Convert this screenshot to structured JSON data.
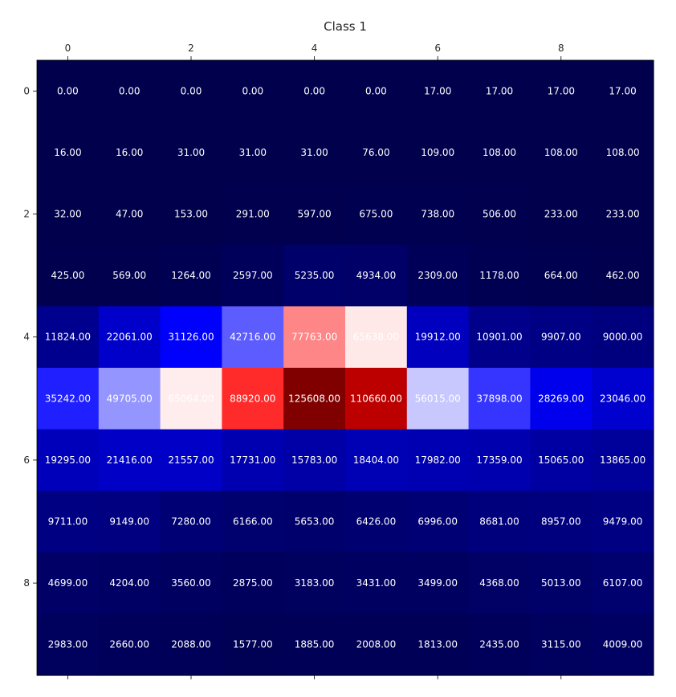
{
  "chart_data": {
    "type": "heatmap",
    "title": "Class 1",
    "colormap": "seismic",
    "rows": 10,
    "cols": 10,
    "vmin": 0,
    "vmax": 125608,
    "x_ticks": [
      0,
      2,
      4,
      6,
      8
    ],
    "y_ticks": [
      0,
      2,
      4,
      6,
      8
    ],
    "x_ticks_position": "top",
    "values": [
      [
        0,
        0,
        0,
        0,
        0,
        0,
        17,
        17,
        17,
        17
      ],
      [
        16,
        16,
        31,
        31,
        31,
        76,
        109,
        108,
        108,
        108
      ],
      [
        32,
        47,
        153,
        291,
        597,
        675,
        738,
        506,
        233,
        233
      ],
      [
        425,
        569,
        1264,
        2597,
        5235,
        4934,
        2309,
        1178,
        664,
        462
      ],
      [
        11824,
        22061,
        31126,
        42716,
        77763,
        65638,
        19912,
        10901,
        9907,
        9000
      ],
      [
        35242,
        49705,
        65064,
        88920,
        125608,
        110660,
        56015,
        37898,
        28269,
        23046
      ],
      [
        19295,
        21416,
        21557,
        17731,
        15783,
        18404,
        17982,
        17359,
        15065,
        13865
      ],
      [
        9711,
        9149,
        7280,
        6166,
        5653,
        6426,
        6996,
        8681,
        8957,
        9479
      ],
      [
        4699,
        4204,
        3560,
        2875,
        3183,
        3431,
        3499,
        4368,
        5013,
        6107
      ],
      [
        2983,
        2660,
        2088,
        1577,
        1885,
        2008,
        1813,
        2435,
        3115,
        4009
      ]
    ],
    "labels": [
      [
        "0.00",
        "0.00",
        "0.00",
        "0.00",
        "0.00",
        "0.00",
        "17.00",
        "17.00",
        "17.00",
        "17.00"
      ],
      [
        "16.00",
        "16.00",
        "31.00",
        "31.00",
        "31.00",
        "76.00",
        "109.00",
        "108.00",
        "108.00",
        "108.00"
      ],
      [
        "32.00",
        "47.00",
        "153.00",
        "291.00",
        "597.00",
        "675.00",
        "738.00",
        "506.00",
        "233.00",
        "233.00"
      ],
      [
        "425.00",
        "569.00",
        "1264.00",
        "2597.00",
        "5235.00",
        "4934.00",
        "2309.00",
        "1178.00",
        "664.00",
        "462.00"
      ],
      [
        "11824.00",
        "22061.00",
        "31126.00",
        "42716.00",
        "77763.00",
        "65638.00",
        "19912.00",
        "10901.00",
        "9907.00",
        "9000.00"
      ],
      [
        "35242.00",
        "49705.00",
        "65064.00",
        "88920.00",
        "125608.00",
        "110660.00",
        "56015.00",
        "37898.00",
        "28269.00",
        "23046.00"
      ],
      [
        "19295.00",
        "21416.00",
        "21557.00",
        "17731.00",
        "15783.00",
        "18404.00",
        "17982.00",
        "17359.00",
        "15065.00",
        "13865.00"
      ],
      [
        "9711.00",
        "9149.00",
        "7280.00",
        "6166.00",
        "5653.00",
        "6426.00",
        "6996.00",
        "8681.00",
        "8957.00",
        "9479.00"
      ],
      [
        "4699.00",
        "4204.00",
        "3560.00",
        "2875.00",
        "3183.00",
        "3431.00",
        "3499.00",
        "4368.00",
        "5013.00",
        "6107.00"
      ],
      [
        "2983.00",
        "2660.00",
        "2088.00",
        "1577.00",
        "1885.00",
        "2008.00",
        "1813.00",
        "2435.00",
        "3115.00",
        "4009.00"
      ]
    ]
  }
}
